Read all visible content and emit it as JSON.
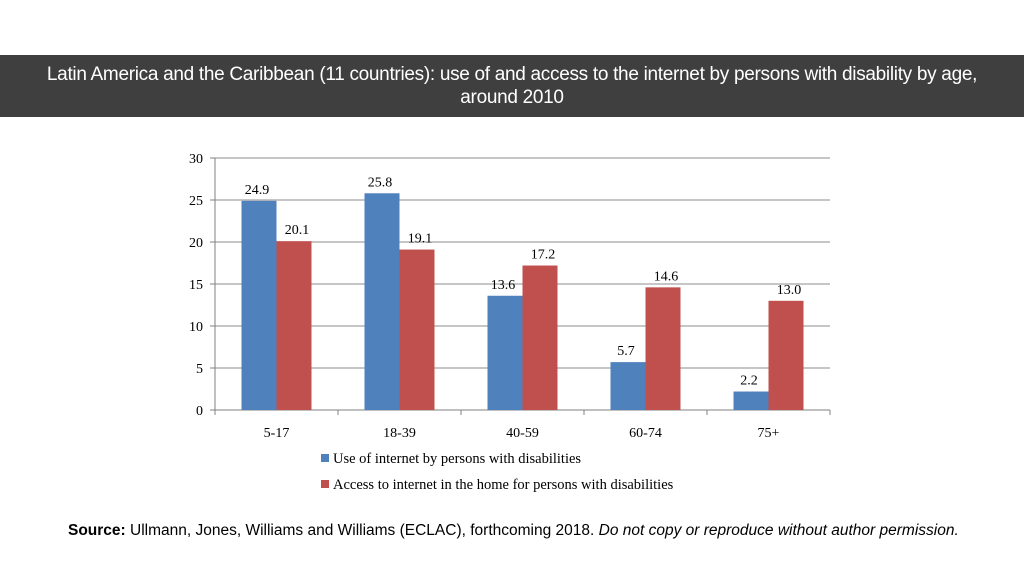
{
  "slide": {
    "title": "Latin America and the Caribbean (11 countries): use of and access to the internet by persons with disability by age, around 2010",
    "source_label": "Source:",
    "source_text": " Ullmann, Jones, Williams and Williams (ECLAC), forthcoming 2018. ",
    "source_note": "Do not copy or reproduce without author permission."
  },
  "chart_data": {
    "type": "bar",
    "categories": [
      "5-17",
      "18-39",
      "40-59",
      "60-74",
      "75+"
    ],
    "series": [
      {
        "name": "Use of internet by persons with disabilities",
        "values": [
          24.9,
          25.8,
          13.6,
          5.7,
          2.2
        ],
        "labels": [
          "24.9",
          "25.8",
          "13.6",
          "5.7",
          "2.2"
        ],
        "color": "#4f81bd"
      },
      {
        "name": "Access to internet in the home for persons with disabilities",
        "values": [
          20.1,
          19.1,
          17.2,
          14.6,
          13.0
        ],
        "labels": [
          "20.1",
          "19.1",
          "17.2",
          "14.6",
          "13.0"
        ],
        "color": "#c0504d"
      }
    ],
    "ylim": [
      0,
      30
    ],
    "yticks": [
      0,
      5,
      10,
      15,
      20,
      25,
      30
    ],
    "grid": true,
    "legend": "bottom",
    "title": "",
    "xlabel": "",
    "ylabel": ""
  }
}
